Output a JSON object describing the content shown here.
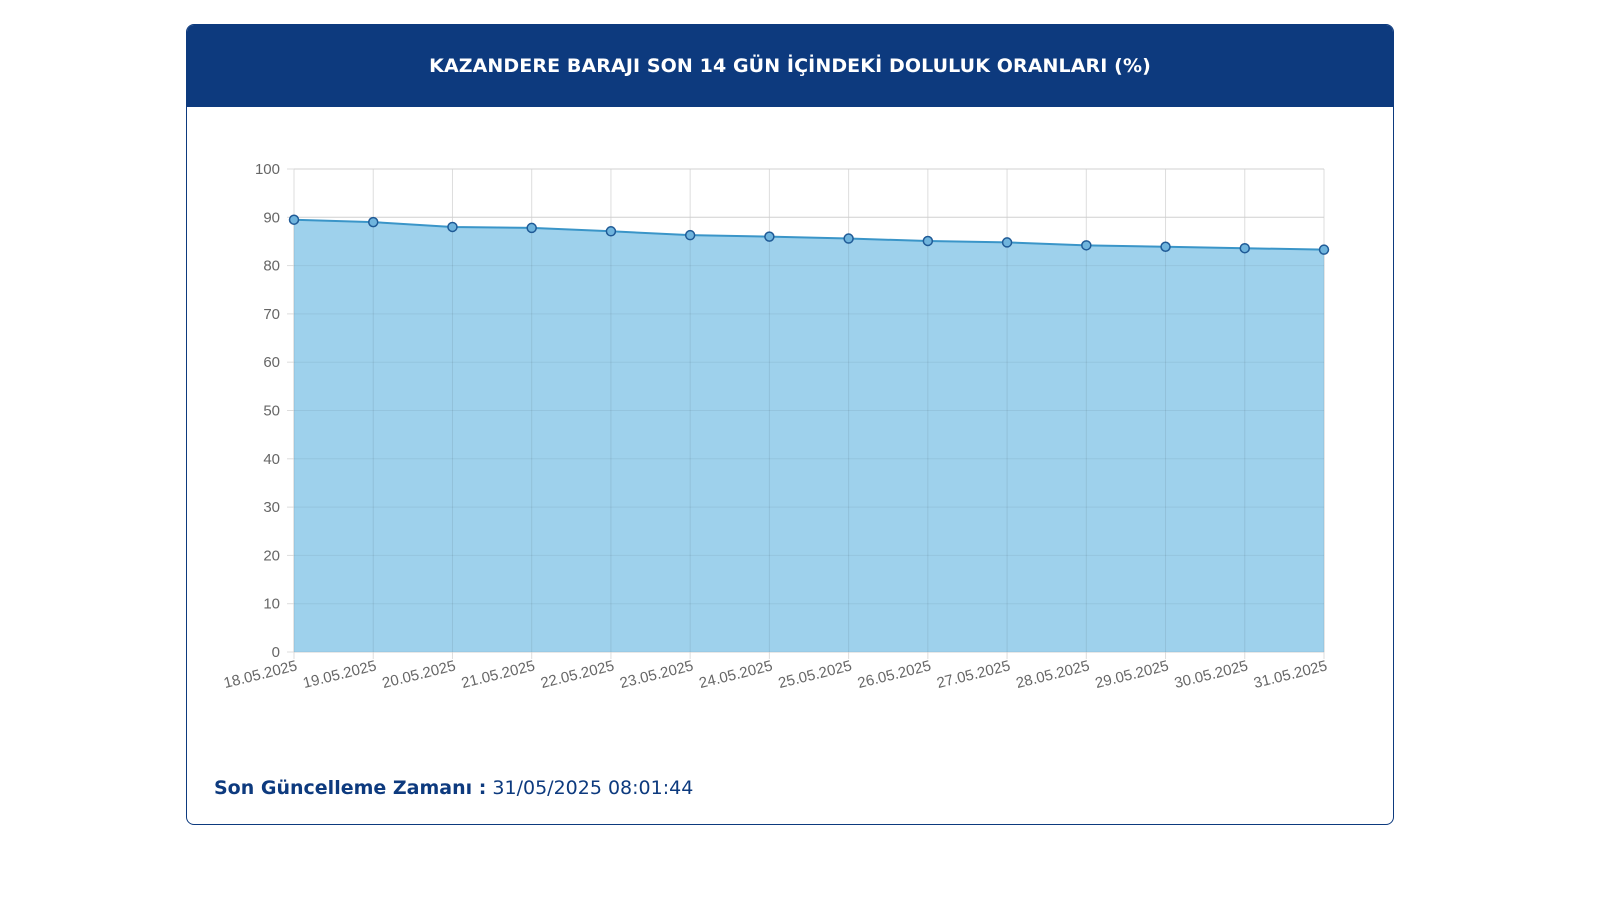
{
  "header": {
    "title": "KAZANDERE BARAJI SON 14 GÜN İÇİNDEKİ DOLULUK ORANLARI (%)"
  },
  "footer": {
    "label": "Son Güncelleme Zamanı :",
    "value": "31/05/2025 08:01:44"
  },
  "colors": {
    "header_bg": "#0d3a7e",
    "area_fill": "#9ed1ec",
    "line": "#3a95c8",
    "point_fill": "#6fb4dd",
    "point_stroke": "#1f5a96",
    "grid": "#dddddd",
    "tick_text": "#666666"
  },
  "chart_data": {
    "type": "area",
    "title": "KAZANDERE BARAJI SON 14 GÜN İÇİNDEKİ DOLULUK ORANLARI (%)",
    "xlabel": "",
    "ylabel": "",
    "ylim": [
      0,
      100
    ],
    "yticks": [
      "0",
      "10",
      "20",
      "30",
      "40",
      "50",
      "60",
      "70",
      "80",
      "90",
      "100"
    ],
    "grid": true,
    "legend": "none",
    "categories": [
      "18.05.2025",
      "19.05.2025",
      "20.05.2025",
      "21.05.2025",
      "22.05.2025",
      "23.05.2025",
      "24.05.2025",
      "25.05.2025",
      "26.05.2025",
      "27.05.2025",
      "28.05.2025",
      "29.05.2025",
      "30.05.2025",
      "31.05.2025"
    ],
    "series": [
      {
        "values": [
          89.5,
          89.0,
          88.0,
          87.8,
          87.1,
          86.3,
          86.0,
          85.6,
          85.1,
          84.8,
          84.2,
          83.9,
          83.6,
          83.3
        ]
      }
    ]
  }
}
